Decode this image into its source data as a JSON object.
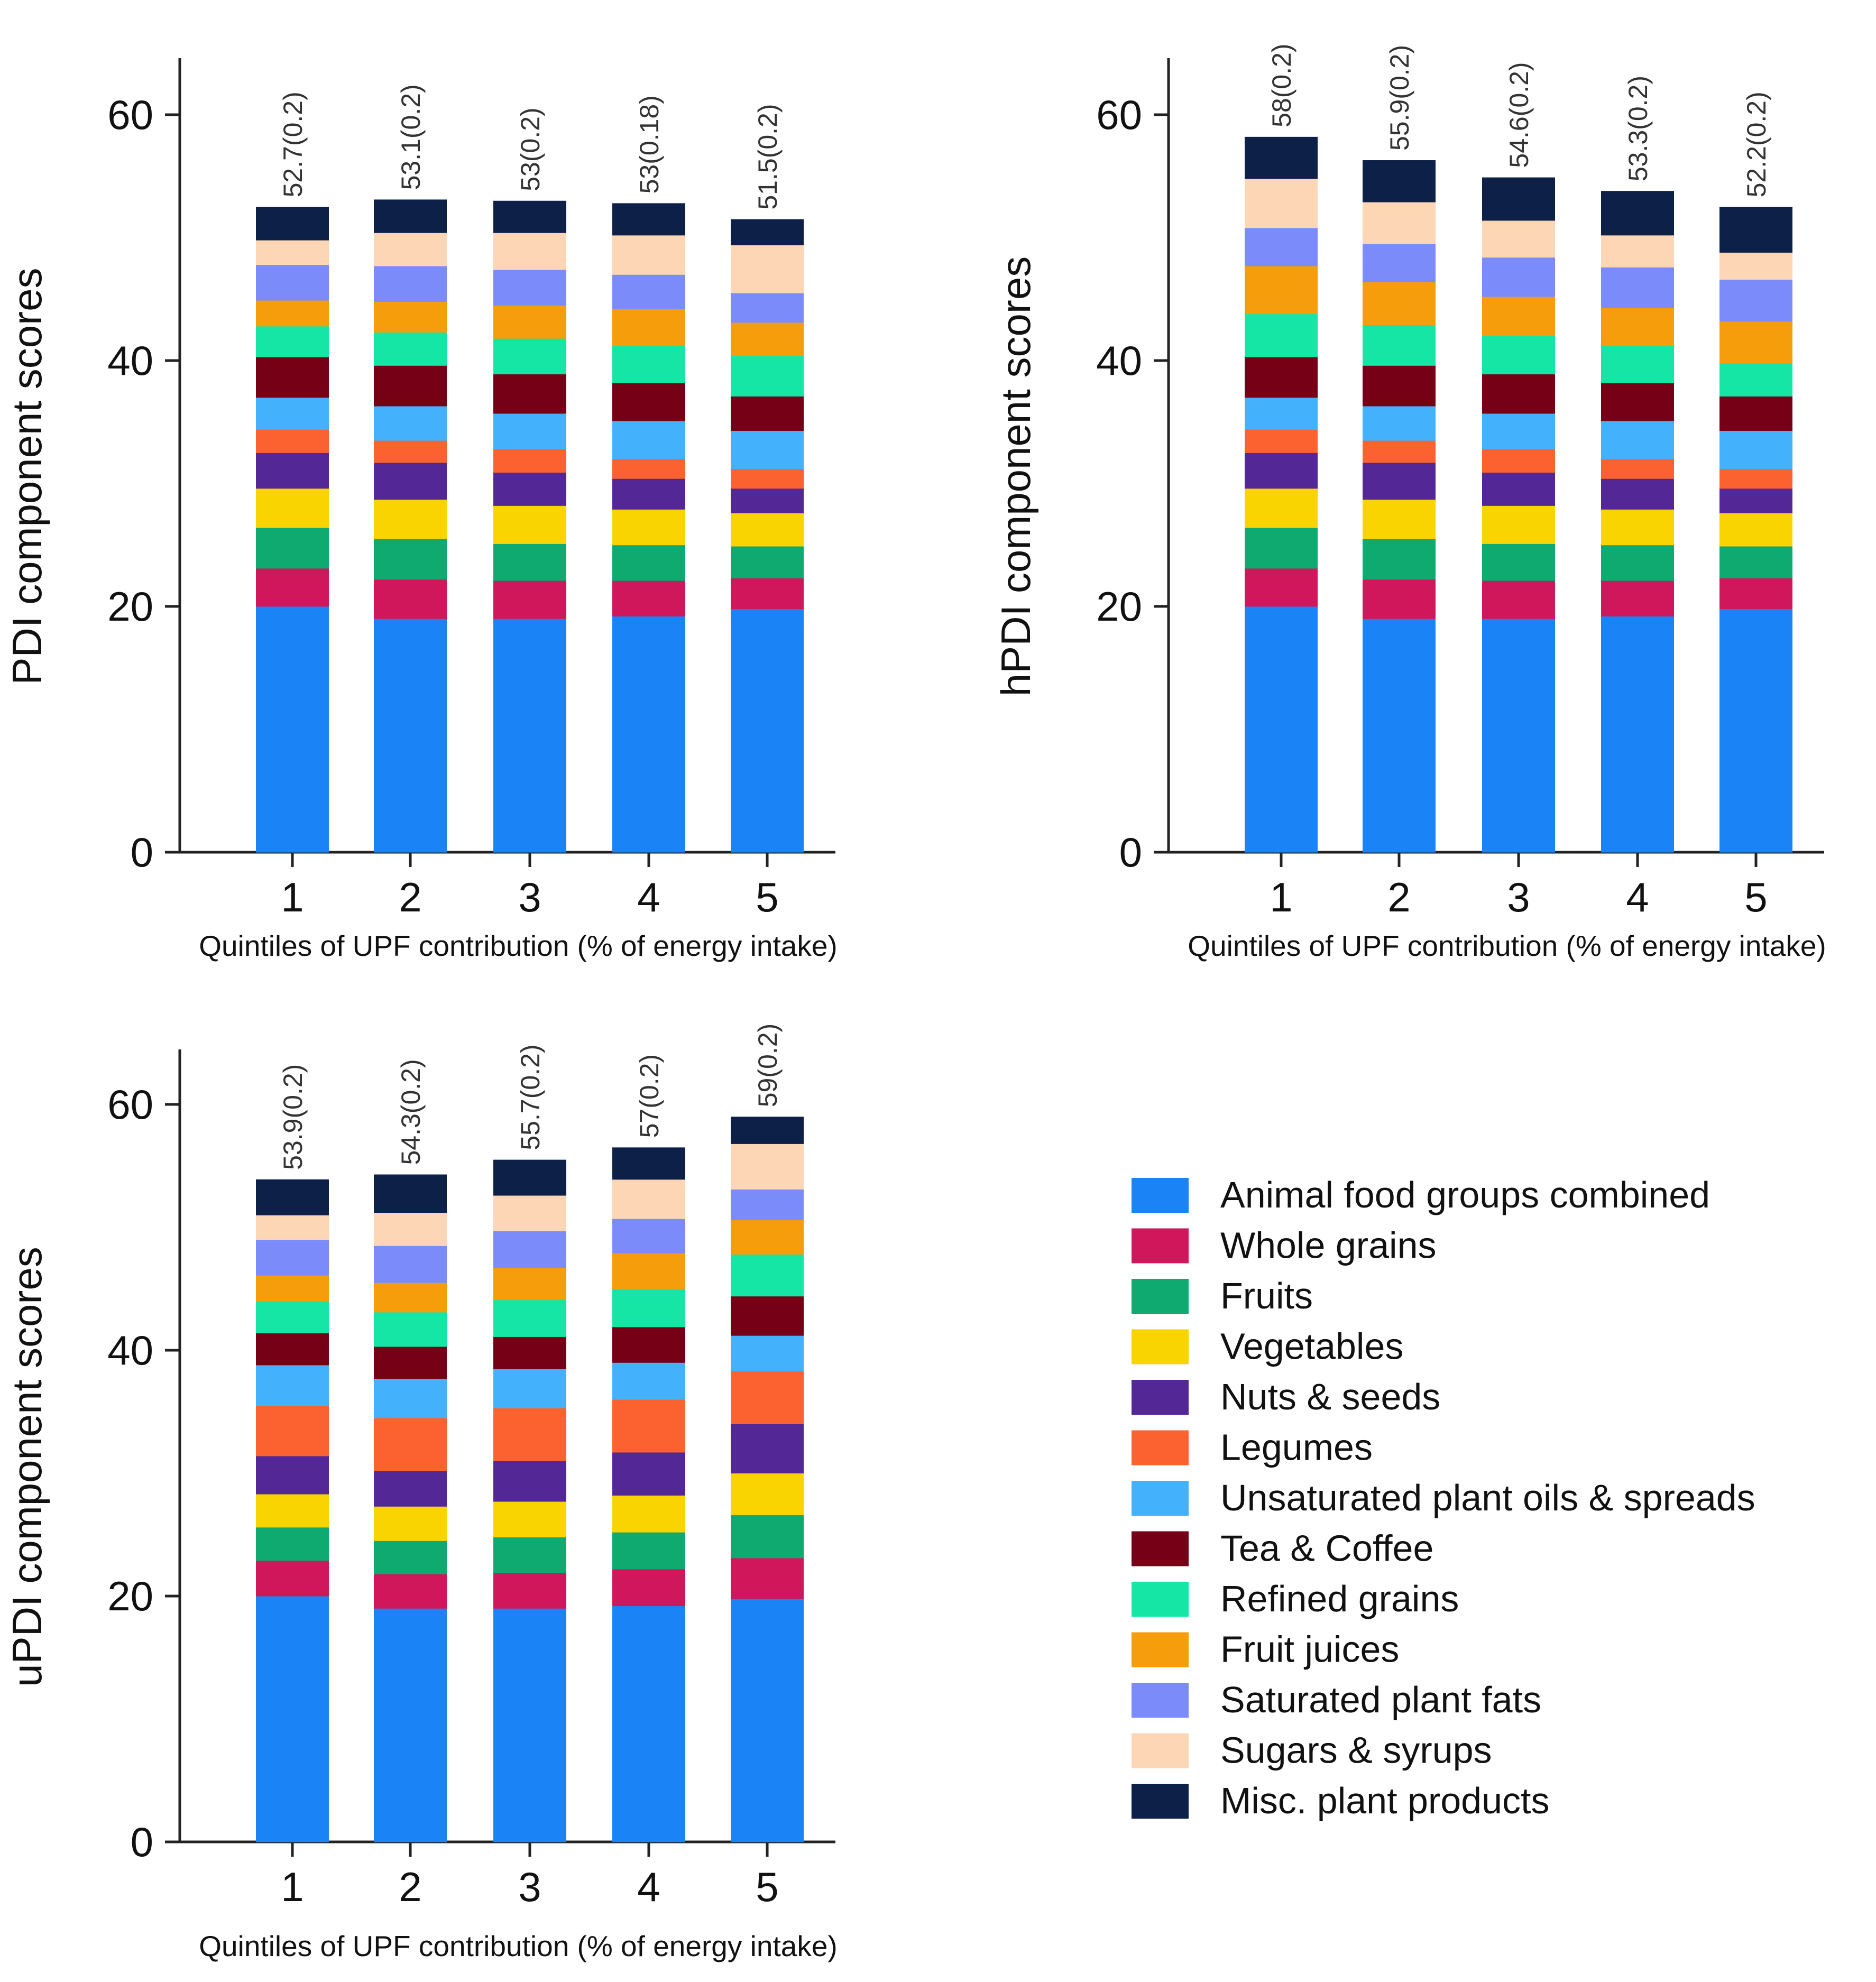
{
  "colors": {
    "Animal food groups combined": "#1a84f6",
    "Whole grains": "#d0175c",
    "Fruits": "#0eaa70",
    "Vegetables": "#fad400",
    "Nuts & seeds": "#532796",
    "Legumes": "#fb622f",
    "Unsaturated plant oils & spreads": "#44b1fc",
    "Tea & Coffee": "#760015",
    "Refined grains": "#15e6a5",
    "Fruit juices": "#f69d0c",
    "Saturated plant fats": "#7b8cfa",
    "Sugars & syrups": "#fdd6b6",
    "Misc. plant products": "#0d2148"
  },
  "legend": {
    "items": [
      "Animal food groups combined",
      "Whole grains",
      "Fruits",
      "Vegetables",
      "Nuts & seeds",
      "Legumes",
      "Unsaturated plant oils & spreads",
      "Tea & Coffee",
      "Refined grains",
      "Fruit juices",
      "Saturated plant fats",
      "Sugars & syrups",
      "Misc. plant products"
    ]
  },
  "chart_data": [
    {
      "id": "pdi",
      "type": "bar",
      "stacked": true,
      "title": "",
      "xlabel": "Quintiles of UPF contribution (% of energy intake)",
      "ylabel": "PDI component scores",
      "ylim": [
        0,
        65
      ],
      "yticks": [
        0,
        20,
        40,
        60
      ],
      "categories": [
        "1",
        "2",
        "3",
        "4",
        "5"
      ],
      "totals_labels": [
        "52.7(0.2)",
        "53.1(0.2)",
        "53(0.2)",
        "53(0.18)",
        "51.5(0.2)"
      ],
      "series": [
        {
          "name": "Animal food groups combined",
          "values": [
            20.0,
            19.0,
            19.0,
            19.2,
            19.8
          ]
        },
        {
          "name": "Whole grains",
          "values": [
            3.1,
            3.2,
            3.1,
            2.9,
            2.5
          ]
        },
        {
          "name": "Fruits",
          "values": [
            3.3,
            3.3,
            3.0,
            2.9,
            2.6
          ]
        },
        {
          "name": "Vegetables",
          "values": [
            3.2,
            3.2,
            3.1,
            2.9,
            2.7
          ]
        },
        {
          "name": "Nuts & seeds",
          "values": [
            2.9,
            3.0,
            2.7,
            2.5,
            2.0
          ]
        },
        {
          "name": "Legumes",
          "values": [
            1.9,
            1.8,
            1.9,
            1.6,
            1.6
          ]
        },
        {
          "name": "Unsaturated plant oils & spreads",
          "values": [
            2.6,
            2.8,
            2.9,
            3.1,
            3.1
          ]
        },
        {
          "name": "Tea & Coffee",
          "values": [
            3.3,
            3.3,
            3.2,
            3.1,
            2.8
          ]
        },
        {
          "name": "Refined grains",
          "values": [
            2.5,
            2.7,
            2.9,
            3.0,
            3.3
          ]
        },
        {
          "name": "Fruit juices",
          "values": [
            2.1,
            2.5,
            2.7,
            3.0,
            2.7
          ]
        },
        {
          "name": "Saturated plant fats",
          "values": [
            2.9,
            2.9,
            2.9,
            2.8,
            2.4
          ]
        },
        {
          "name": "Sugars & syrups",
          "values": [
            2.0,
            2.7,
            3.0,
            3.2,
            3.9
          ]
        },
        {
          "name": "Misc. plant products",
          "values": [
            2.7,
            2.7,
            2.6,
            2.6,
            2.1
          ]
        }
      ]
    },
    {
      "id": "hpdi",
      "type": "bar",
      "stacked": true,
      "title": "",
      "xlabel": "Quintiles of UPF contribution (% of energy intake)",
      "ylabel": "hPDI component scores",
      "ylim": [
        0,
        65
      ],
      "yticks": [
        0,
        20,
        40,
        60
      ],
      "categories": [
        "1",
        "2",
        "3",
        "4",
        "5"
      ],
      "totals_labels": [
        "58(0.2)",
        "55.9(0.2)",
        "54.6(0.2)",
        "53.3(0.2)",
        "52.2(0.2)"
      ],
      "series": [
        {
          "name": "Animal food groups combined",
          "values": [
            20.0,
            19.0,
            19.0,
            19.2,
            19.8
          ]
        },
        {
          "name": "Whole grains",
          "values": [
            3.1,
            3.2,
            3.1,
            2.9,
            2.5
          ]
        },
        {
          "name": "Fruits",
          "values": [
            3.3,
            3.3,
            3.0,
            2.9,
            2.6
          ]
        },
        {
          "name": "Vegetables",
          "values": [
            3.2,
            3.2,
            3.1,
            2.9,
            2.7
          ]
        },
        {
          "name": "Nuts & seeds",
          "values": [
            2.9,
            3.0,
            2.7,
            2.5,
            2.0
          ]
        },
        {
          "name": "Legumes",
          "values": [
            1.9,
            1.8,
            1.9,
            1.6,
            1.6
          ]
        },
        {
          "name": "Unsaturated plant oils & spreads",
          "values": [
            2.6,
            2.8,
            2.9,
            3.1,
            3.1
          ]
        },
        {
          "name": "Tea & Coffee",
          "values": [
            3.3,
            3.3,
            3.2,
            3.1,
            2.8
          ]
        },
        {
          "name": "Refined grains",
          "values": [
            3.5,
            3.3,
            3.1,
            3.0,
            2.7
          ]
        },
        {
          "name": "Fruit juices",
          "values": [
            3.9,
            3.5,
            3.2,
            3.1,
            3.4
          ]
        },
        {
          "name": "Saturated plant fats",
          "values": [
            3.1,
            3.1,
            3.2,
            3.3,
            3.4
          ]
        },
        {
          "name": "Sugars & syrups",
          "values": [
            4.0,
            3.4,
            3.0,
            2.6,
            2.2
          ]
        },
        {
          "name": "Misc. plant products",
          "values": [
            3.4,
            3.4,
            3.5,
            3.6,
            3.7
          ]
        }
      ]
    },
    {
      "id": "updi",
      "type": "bar",
      "stacked": true,
      "title": "",
      "xlabel": "Quintiles of UPF contribution (% of energy intake)",
      "ylabel": "uPDI component scores",
      "ylim": [
        0,
        65
      ],
      "yticks": [
        0,
        20,
        40,
        60
      ],
      "categories": [
        "1",
        "2",
        "3",
        "4",
        "5"
      ],
      "totals_labels": [
        "53.9(0.2)",
        "54.3(0.2)",
        "55.7(0.2)",
        "57(0.2)",
        "59(0.2)"
      ],
      "series": [
        {
          "name": "Animal food groups combined",
          "values": [
            20.0,
            19.0,
            19.0,
            19.2,
            19.8
          ]
        },
        {
          "name": "Whole grains",
          "values": [
            2.9,
            2.8,
            2.9,
            3.0,
            3.3
          ]
        },
        {
          "name": "Fruits",
          "values": [
            2.7,
            2.7,
            2.9,
            3.0,
            3.5
          ]
        },
        {
          "name": "Vegetables",
          "values": [
            2.7,
            2.8,
            2.9,
            3.0,
            3.4
          ]
        },
        {
          "name": "Nuts & seeds",
          "values": [
            3.1,
            2.9,
            3.3,
            3.5,
            4.0
          ]
        },
        {
          "name": "Legumes",
          "values": [
            4.1,
            4.3,
            4.3,
            4.3,
            4.3
          ]
        },
        {
          "name": "Unsaturated plant oils & spreads",
          "values": [
            3.3,
            3.2,
            3.2,
            3.0,
            2.9
          ]
        },
        {
          "name": "Tea & Coffee",
          "values": [
            2.6,
            2.6,
            2.6,
            2.9,
            3.2
          ]
        },
        {
          "name": "Refined grains",
          "values": [
            2.6,
            2.8,
            3.0,
            3.1,
            3.4
          ]
        },
        {
          "name": "Fruit juices",
          "values": [
            2.1,
            2.4,
            2.6,
            2.9,
            2.8
          ]
        },
        {
          "name": "Saturated plant fats",
          "values": [
            2.9,
            3.0,
            3.0,
            2.8,
            2.5
          ]
        },
        {
          "name": "Sugars & syrups",
          "values": [
            2.0,
            2.7,
            2.9,
            3.2,
            3.7
          ]
        },
        {
          "name": "Misc. plant products",
          "values": [
            2.9,
            3.1,
            2.9,
            2.6,
            2.2
          ]
        }
      ]
    }
  ]
}
